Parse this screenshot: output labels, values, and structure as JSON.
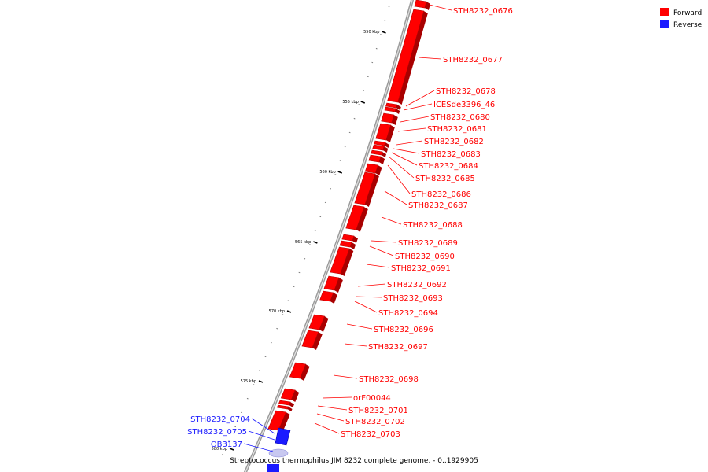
{
  "title": "Streptococcus thermophilus JIM 8232 complete genome. - 0..1929905",
  "legend": [
    {
      "label": "Forward",
      "color": "#ff0000"
    },
    {
      "label": "Reverse",
      "color": "#1a1aff"
    }
  ],
  "colors": {
    "forward": "#ff0000",
    "reverse": "#1a1aff",
    "backbone": "#9a9a9a"
  },
  "scale_labels": [
    "550 kbp",
    "555 kbp",
    "560 kbp",
    "565 kbp",
    "570 kbp",
    "575 kbp",
    "580 kbp"
  ],
  "forward_genes": [
    "STH8232_0676",
    "STH8232_0677",
    "STH8232_0678",
    "ICESde3396_46",
    "STH8232_0680",
    "STH8232_0681",
    "STH8232_0682",
    "STH8232_0683",
    "STH8232_0684",
    "STH8232_0685",
    "STH8232_0686",
    "STH8232_0687",
    "STH8232_0688",
    "STH8232_0689",
    "STH8232_0690",
    "STH8232_0691",
    "STH8232_0692",
    "STH8232_0693",
    "STH8232_0694",
    "STH8232_0696",
    "STH8232_0697",
    "STH8232_0698",
    "orF00044",
    "STH8232_0701",
    "STH8232_0702",
    "STH8232_0703"
  ],
  "reverse_genes": [
    "STH8232_0704",
    "STH8232_0705",
    "OB3137"
  ]
}
